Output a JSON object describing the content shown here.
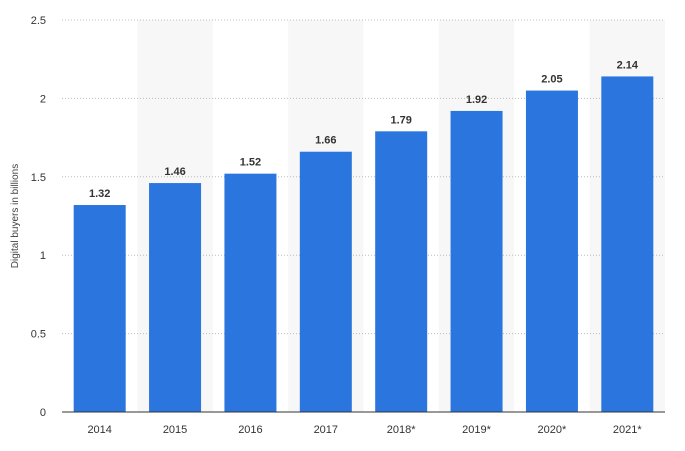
{
  "chart_data": {
    "type": "bar",
    "categories": [
      "2014",
      "2015",
      "2016",
      "2017",
      "2018*",
      "2019*",
      "2020*",
      "2021*"
    ],
    "values": [
      1.32,
      1.46,
      1.52,
      1.66,
      1.79,
      1.92,
      2.05,
      2.14
    ],
    "data_labels": [
      "1.32",
      "1.46",
      "1.52",
      "1.66",
      "1.79",
      "1.92",
      "2.05",
      "2.14"
    ],
    "title": "",
    "xlabel": "",
    "ylabel": "Digital buyers in billions",
    "ylim": [
      0,
      2.5
    ],
    "yticks": [
      0,
      0.5,
      1,
      1.5,
      2,
      2.5
    ],
    "ytick_labels": [
      "0",
      "0.5",
      "1",
      "1.5",
      "2",
      "2.5"
    ],
    "grid": true,
    "legend": "none",
    "colors": {
      "bar": "#2a75de",
      "band": "#f7f7f7",
      "grid": "#bbbbbb",
      "axis": "#333333"
    }
  }
}
